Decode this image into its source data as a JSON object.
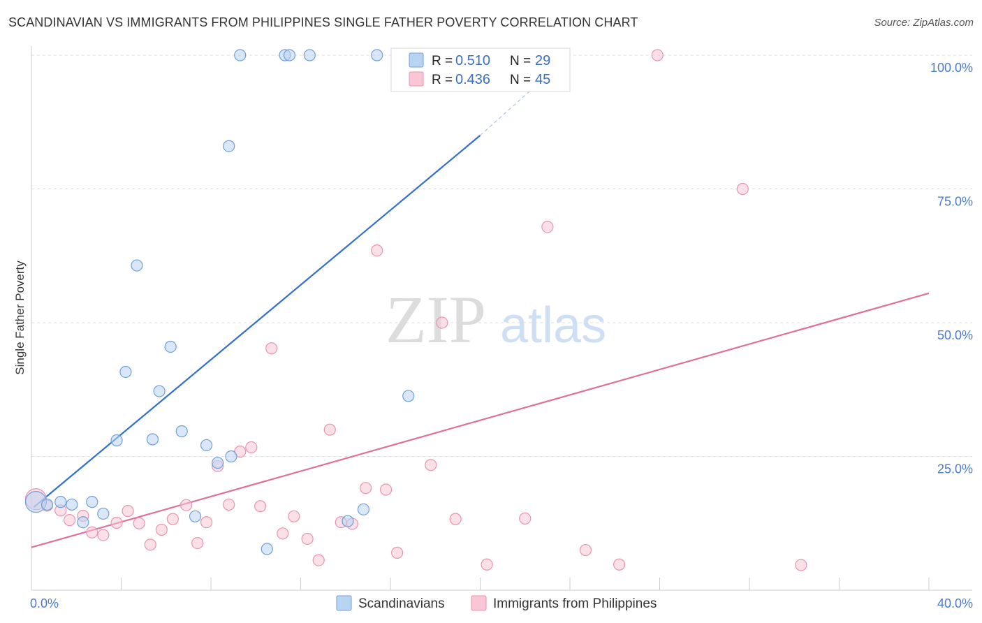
{
  "title": "SCANDINAVIAN VS IMMIGRANTS FROM PHILIPPINES SINGLE FATHER POVERTY CORRELATION CHART",
  "source": "Source: ZipAtlas.com",
  "watermark": {
    "zip": "ZIP",
    "atlas": "atlas"
  },
  "colors": {
    "blue_fill": "#b9d4f2",
    "blue_stroke": "#6f9fd8",
    "blue_line": "#2f6fd0",
    "pink_fill": "#f8c6d5",
    "pink_stroke": "#e894b0",
    "pink_line": "#e0709a",
    "grid": "#dcdcdc",
    "tick_text": "#4a7cc9"
  },
  "legend": {
    "rows": [
      {
        "r_label": "R = ",
        "r_value": "0.510",
        "n_label": "N = ",
        "n_value": "29"
      },
      {
        "r_label": "R = ",
        "r_value": "0.436",
        "n_label": "N = ",
        "n_value": "45"
      }
    ]
  },
  "bottom_legend": [
    "Scandinavians",
    "Immigrants from Philippines"
  ],
  "chart_data": {
    "type": "scatter",
    "title": "SCANDINAVIAN VS IMMIGRANTS FROM PHILIPPINES SINGLE FATHER POVERTY CORRELATION CHART",
    "xlabel": "",
    "ylabel": "Single Father Poverty",
    "xlim": [
      0,
      40
    ],
    "ylim": [
      0,
      100
    ],
    "x_tick_labels": [
      "0.0%",
      "40.0%"
    ],
    "y_tick_labels": [
      "25.0%",
      "50.0%",
      "75.0%",
      "100.0%"
    ],
    "y_ticks": [
      25,
      50,
      75,
      100
    ],
    "grid": true,
    "legend_position": "top-center",
    "series": [
      {
        "name": "Scandinavians",
        "r": 0.51,
        "n": 29,
        "trend": {
          "x": [
            0.1,
            20.0
          ],
          "y": [
            15.5,
            85.0
          ],
          "dashed_to": [
            24.0,
            100.0
          ]
        },
        "points": [
          {
            "x": 0.2,
            "y": 16.5,
            "big": true
          },
          {
            "x": 0.7,
            "y": 16.0
          },
          {
            "x": 1.3,
            "y": 16.5
          },
          {
            "x": 1.8,
            "y": 16.0
          },
          {
            "x": 2.3,
            "y": 12.7
          },
          {
            "x": 2.7,
            "y": 16.5
          },
          {
            "x": 3.2,
            "y": 14.3
          },
          {
            "x": 3.8,
            "y": 28.0
          },
          {
            "x": 4.2,
            "y": 40.8
          },
          {
            "x": 4.7,
            "y": 60.7
          },
          {
            "x": 5.4,
            "y": 28.2
          },
          {
            "x": 5.7,
            "y": 37.2
          },
          {
            "x": 6.2,
            "y": 45.5
          },
          {
            "x": 6.7,
            "y": 29.7
          },
          {
            "x": 7.3,
            "y": 13.8
          },
          {
            "x": 7.8,
            "y": 27.1
          },
          {
            "x": 8.3,
            "y": 23.8
          },
          {
            "x": 8.8,
            "y": 83.0
          },
          {
            "x": 9.3,
            "y": 100.0
          },
          {
            "x": 8.9,
            "y": 25.0
          },
          {
            "x": 10.5,
            "y": 7.7
          },
          {
            "x": 11.3,
            "y": 100.0
          },
          {
            "x": 11.5,
            "y": 100.0
          },
          {
            "x": 12.4,
            "y": 100.0
          },
          {
            "x": 14.1,
            "y": 12.9
          },
          {
            "x": 14.8,
            "y": 15.1
          },
          {
            "x": 15.4,
            "y": 100.0
          },
          {
            "x": 16.8,
            "y": 36.3
          },
          {
            "x": 16.6,
            "y": 100.0
          }
        ]
      },
      {
        "name": "Immigrants from Philippines",
        "r": 0.436,
        "n": 45,
        "trend": {
          "x": [
            0.0,
            40.0
          ],
          "y": [
            8.0,
            55.5
          ]
        },
        "points": [
          {
            "x": 0.2,
            "y": 17.0,
            "big": true
          },
          {
            "x": 0.7,
            "y": 15.8
          },
          {
            "x": 1.3,
            "y": 14.9
          },
          {
            "x": 1.7,
            "y": 13.1
          },
          {
            "x": 2.3,
            "y": 13.9
          },
          {
            "x": 2.7,
            "y": 10.8
          },
          {
            "x": 3.2,
            "y": 10.3
          },
          {
            "x": 3.8,
            "y": 12.6
          },
          {
            "x": 4.3,
            "y": 14.8
          },
          {
            "x": 4.8,
            "y": 12.5
          },
          {
            "x": 5.3,
            "y": 8.5
          },
          {
            "x": 5.8,
            "y": 11.3
          },
          {
            "x": 6.3,
            "y": 13.3
          },
          {
            "x": 6.9,
            "y": 15.9
          },
          {
            "x": 7.4,
            "y": 8.8
          },
          {
            "x": 7.8,
            "y": 12.7
          },
          {
            "x": 8.3,
            "y": 23.2
          },
          {
            "x": 8.8,
            "y": 16.0
          },
          {
            "x": 9.3,
            "y": 25.9
          },
          {
            "x": 9.8,
            "y": 26.7
          },
          {
            "x": 10.2,
            "y": 15.7
          },
          {
            "x": 10.7,
            "y": 45.2
          },
          {
            "x": 11.2,
            "y": 10.6
          },
          {
            "x": 11.7,
            "y": 13.8
          },
          {
            "x": 12.3,
            "y": 9.6
          },
          {
            "x": 12.8,
            "y": 5.6
          },
          {
            "x": 13.3,
            "y": 30.0
          },
          {
            "x": 13.8,
            "y": 12.7
          },
          {
            "x": 14.3,
            "y": 12.4
          },
          {
            "x": 14.9,
            "y": 19.1
          },
          {
            "x": 15.4,
            "y": 63.5
          },
          {
            "x": 15.8,
            "y": 18.8
          },
          {
            "x": 16.3,
            "y": 7.0
          },
          {
            "x": 17.8,
            "y": 23.4
          },
          {
            "x": 18.3,
            "y": 50.0
          },
          {
            "x": 18.9,
            "y": 13.3
          },
          {
            "x": 20.3,
            "y": 4.8
          },
          {
            "x": 22.0,
            "y": 13.4
          },
          {
            "x": 23.0,
            "y": 67.9
          },
          {
            "x": 24.7,
            "y": 7.5
          },
          {
            "x": 26.2,
            "y": 4.8
          },
          {
            "x": 27.9,
            "y": 100.0
          },
          {
            "x": 31.7,
            "y": 75.0
          },
          {
            "x": 34.3,
            "y": 4.7
          },
          {
            "x": 22.8,
            "y": 100.0
          }
        ]
      }
    ]
  }
}
